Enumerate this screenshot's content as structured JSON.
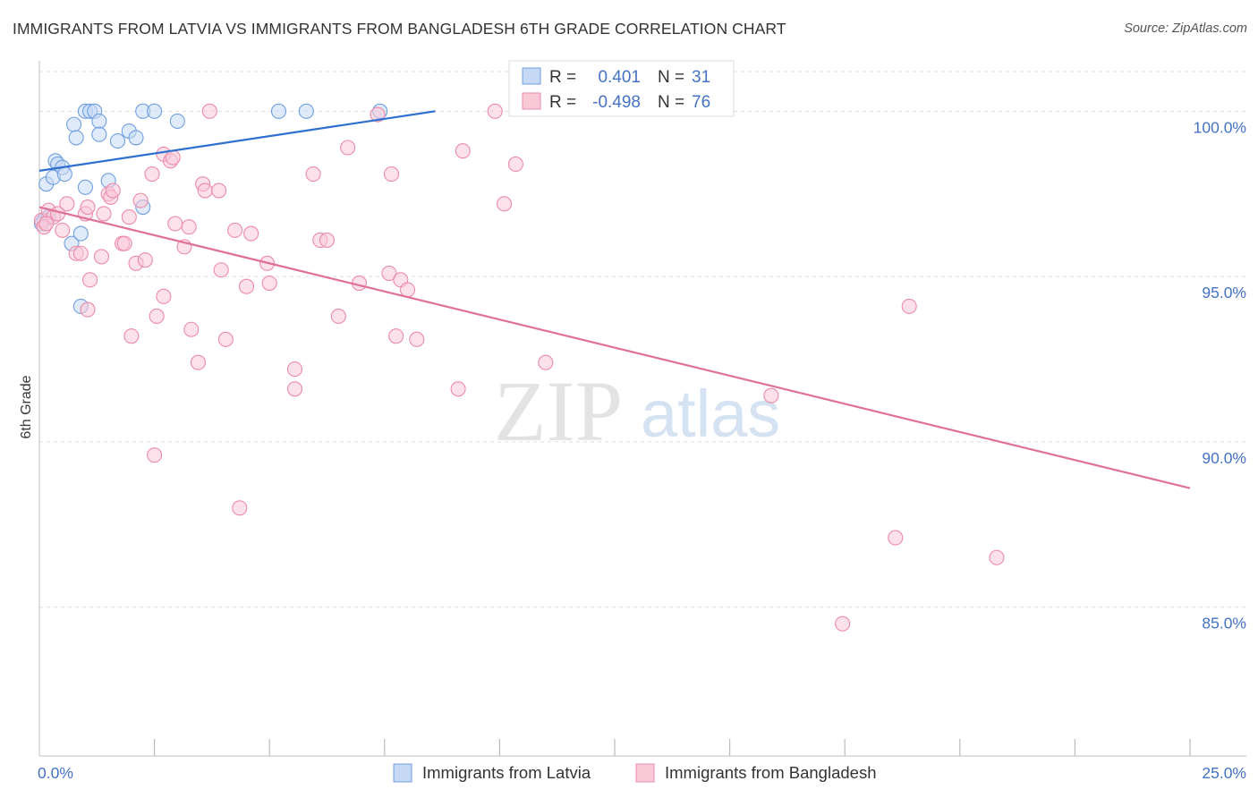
{
  "title": "IMMIGRANTS FROM LATVIA VS IMMIGRANTS FROM BANGLADESH 6TH GRADE CORRELATION CHART",
  "source": "Source: ZipAtlas.com",
  "watermark": {
    "zip": "ZIP",
    "atlas": "atlas"
  },
  "colors": {
    "latvia": "#6f9fe0",
    "latvia_fill": "#c5d9f5",
    "latvia_line": "#2f6fcf",
    "bangladesh": "#ec8aa9",
    "bangladesh_fill": "#f9c9d8",
    "bangladesh_line": "#e0709a",
    "accent_text": "#4472c4",
    "grid": "#dddddd"
  },
  "stats": {
    "r_label": "R =",
    "n_label": "N =",
    "latvia": {
      "r": "0.401",
      "n": "31"
    },
    "bangladesh": {
      "r": "-0.498",
      "n": "76"
    }
  },
  "chart_data": {
    "type": "scatter",
    "title": "IMMIGRANTS FROM LATVIA VS IMMIGRANTS FROM BANGLADESH 6TH GRADE CORRELATION CHART",
    "xlabel": "",
    "ylabel": "6th Grade",
    "xlim": [
      0,
      25
    ],
    "ylim": [
      80.5,
      101.2
    ],
    "x_tick_labels": [
      {
        "value": 0,
        "label": "0.0%"
      },
      {
        "value": 25,
        "label": "25.0%"
      }
    ],
    "x_minor_ticks": [
      2.5,
      5,
      7.5,
      10,
      12.5,
      15,
      17.5,
      20,
      22.5,
      25
    ],
    "y_ticks": [
      {
        "value": 100,
        "label": "100.0%"
      },
      {
        "value": 95,
        "label": "95.0%"
      },
      {
        "value": 90,
        "label": "90.0%"
      },
      {
        "value": 85,
        "label": "85.0%"
      }
    ],
    "grid": true,
    "legend": {
      "position": "bottom-center"
    },
    "series": [
      {
        "name": "Immigrants from Latvia",
        "key": "latvia",
        "points": [
          [
            0.15,
            97.8
          ],
          [
            0.3,
            98.0
          ],
          [
            0.35,
            98.5
          ],
          [
            0.4,
            98.4
          ],
          [
            0.5,
            98.3
          ],
          [
            0.55,
            98.1
          ],
          [
            0.7,
            96.0
          ],
          [
            0.9,
            96.3
          ],
          [
            0.9,
            94.1
          ],
          [
            1.0,
            97.7
          ],
          [
            0.75,
            99.6
          ],
          [
            0.8,
            99.2
          ],
          [
            1.0,
            100.0
          ],
          [
            1.1,
            100.0
          ],
          [
            1.2,
            100.0
          ],
          [
            1.3,
            99.7
          ],
          [
            1.3,
            99.3
          ],
          [
            1.5,
            97.9
          ],
          [
            1.7,
            99.1
          ],
          [
            1.95,
            99.4
          ],
          [
            2.1,
            99.2
          ],
          [
            2.25,
            97.1
          ],
          [
            2.25,
            100.0
          ],
          [
            2.5,
            100.0
          ],
          [
            3.0,
            99.7
          ],
          [
            5.2,
            100.0
          ],
          [
            5.8,
            100.0
          ],
          [
            7.4,
            100.0
          ],
          [
            0.1,
            96.7
          ],
          [
            0.05,
            96.6
          ],
          [
            0.2,
            96.8
          ]
        ],
        "trend": [
          [
            0.0,
            98.2
          ],
          [
            8.6,
            100.0
          ]
        ]
      },
      {
        "name": "Immigrants from Bangladesh",
        "key": "bangladesh",
        "points": [
          [
            0.05,
            96.7
          ],
          [
            0.1,
            96.5
          ],
          [
            0.2,
            97.0
          ],
          [
            0.3,
            96.8
          ],
          [
            0.4,
            96.9
          ],
          [
            0.5,
            96.4
          ],
          [
            0.6,
            97.2
          ],
          [
            0.8,
            95.7
          ],
          [
            0.9,
            95.7
          ],
          [
            1.0,
            96.9
          ],
          [
            1.05,
            97.1
          ],
          [
            1.1,
            94.9
          ],
          [
            1.05,
            94.0
          ],
          [
            1.35,
            95.6
          ],
          [
            1.4,
            96.9
          ],
          [
            1.5,
            97.5
          ],
          [
            1.55,
            97.4
          ],
          [
            1.6,
            97.6
          ],
          [
            1.8,
            96.0
          ],
          [
            1.85,
            96.0
          ],
          [
            1.95,
            96.8
          ],
          [
            2.0,
            93.2
          ],
          [
            2.1,
            95.4
          ],
          [
            2.2,
            97.3
          ],
          [
            2.3,
            95.5
          ],
          [
            2.45,
            98.1
          ],
          [
            2.5,
            89.6
          ],
          [
            2.55,
            93.8
          ],
          [
            2.7,
            98.7
          ],
          [
            2.7,
            94.4
          ],
          [
            2.85,
            98.5
          ],
          [
            2.9,
            98.6
          ],
          [
            2.95,
            96.6
          ],
          [
            3.15,
            95.9
          ],
          [
            3.25,
            96.5
          ],
          [
            3.3,
            93.4
          ],
          [
            3.45,
            92.4
          ],
          [
            3.55,
            97.8
          ],
          [
            3.6,
            97.6
          ],
          [
            3.7,
            100.0
          ],
          [
            3.9,
            97.6
          ],
          [
            3.95,
            95.2
          ],
          [
            4.05,
            93.1
          ],
          [
            4.25,
            96.4
          ],
          [
            4.35,
            88.0
          ],
          [
            4.5,
            94.7
          ],
          [
            4.6,
            96.3
          ],
          [
            4.95,
            95.4
          ],
          [
            5.0,
            94.8
          ],
          [
            5.55,
            92.2
          ],
          [
            5.55,
            91.6
          ],
          [
            5.95,
            98.1
          ],
          [
            6.1,
            96.1
          ],
          [
            6.25,
            96.1
          ],
          [
            6.5,
            93.8
          ],
          [
            6.7,
            98.9
          ],
          [
            6.95,
            94.8
          ],
          [
            7.35,
            99.9
          ],
          [
            7.6,
            95.1
          ],
          [
            7.65,
            98.1
          ],
          [
            7.75,
            93.2
          ],
          [
            7.85,
            94.9
          ],
          [
            8.0,
            94.6
          ],
          [
            8.2,
            93.1
          ],
          [
            9.1,
            91.6
          ],
          [
            9.2,
            98.8
          ],
          [
            9.9,
            100.0
          ],
          [
            10.1,
            97.2
          ],
          [
            10.35,
            98.4
          ],
          [
            11.0,
            92.4
          ],
          [
            15.9,
            91.4
          ],
          [
            17.45,
            84.5
          ],
          [
            18.6,
            87.1
          ],
          [
            18.9,
            94.1
          ],
          [
            20.8,
            86.5
          ],
          [
            0.15,
            96.6
          ]
        ],
        "trend": [
          [
            0.0,
            97.1
          ],
          [
            25.0,
            88.6
          ]
        ]
      }
    ]
  }
}
